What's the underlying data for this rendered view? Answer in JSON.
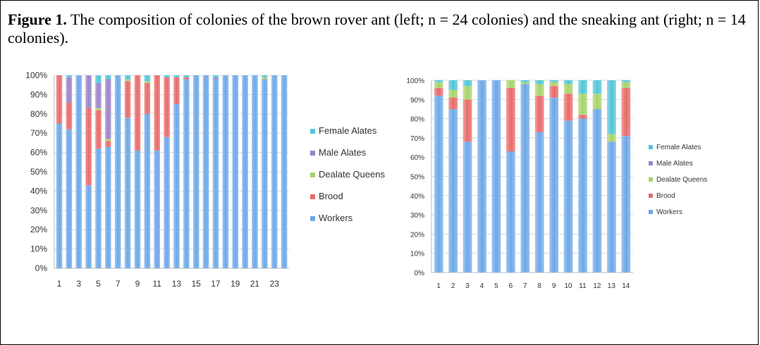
{
  "caption": {
    "label": "Figure 1.",
    "text": "The composition of colonies of the brown rover ant (left; n = 24 colonies) and the sneaking ant (right; n = 14 colonies)."
  },
  "colors": {
    "Workers": "#6ea8e8",
    "Brood": "#e86a6a",
    "Dealate Queens": "#a8d36a",
    "Male Alates": "#9b84c8",
    "Female Alates": "#52c5d8"
  },
  "chart_data": [
    {
      "type": "bar",
      "stacked": true,
      "title": "",
      "ylim": [
        0,
        100
      ],
      "yticks": [
        "0%",
        "10%",
        "20%",
        "30%",
        "40%",
        "50%",
        "60%",
        "70%",
        "80%",
        "90%",
        "100%"
      ],
      "x": [
        1,
        2,
        3,
        4,
        5,
        6,
        7,
        8,
        9,
        10,
        11,
        12,
        13,
        14,
        15,
        16,
        17,
        18,
        19,
        20,
        21,
        22,
        23,
        24
      ],
      "xticks": [
        "1",
        "3",
        "5",
        "7",
        "9",
        "11",
        "13",
        "15",
        "17",
        "19",
        "21",
        "23"
      ],
      "legend_position": "right",
      "legend": [
        "Female Alates",
        "Male Alates",
        "Dealate Queens",
        "Brood",
        "Workers"
      ],
      "series": [
        {
          "name": "Workers",
          "values": [
            75,
            72,
            100,
            43,
            62,
            63,
            100,
            78,
            61,
            80,
            61,
            68,
            85,
            98,
            100,
            100,
            98,
            100,
            100,
            100,
            100,
            98,
            100,
            100
          ]
        },
        {
          "name": "Brood",
          "values": [
            25,
            14,
            0,
            40,
            20,
            3,
            0,
            19,
            39,
            16,
            39,
            31,
            14,
            1,
            0,
            0,
            0,
            0,
            0,
            0,
            0,
            0,
            0,
            0
          ]
        },
        {
          "name": "Dealate Queens",
          "values": [
            0,
            0,
            0,
            0,
            1,
            1,
            0,
            1,
            0,
            1,
            0,
            0,
            0,
            0,
            0,
            0,
            0,
            0,
            0,
            0,
            0,
            1,
            0,
            0
          ]
        },
        {
          "name": "Male Alates",
          "values": [
            0,
            13,
            0,
            17,
            13,
            31,
            0,
            0,
            0,
            0,
            0,
            0,
            0,
            0,
            0,
            0,
            1,
            0,
            0,
            0,
            0,
            0,
            0,
            0
          ]
        },
        {
          "name": "Female Alates",
          "values": [
            0,
            1,
            0,
            0,
            4,
            2,
            0,
            2,
            0,
            3,
            0,
            1,
            1,
            1,
            0,
            0,
            1,
            0,
            0,
            0,
            0,
            1,
            0,
            0
          ]
        }
      ]
    },
    {
      "type": "bar",
      "stacked": true,
      "title": "",
      "ylim": [
        0,
        100
      ],
      "yticks": [
        "0%",
        "10%",
        "20%",
        "30%",
        "40%",
        "50%",
        "60%",
        "70%",
        "80%",
        "90%",
        "100%"
      ],
      "x": [
        1,
        2,
        3,
        4,
        5,
        6,
        7,
        8,
        9,
        10,
        11,
        12,
        13,
        14
      ],
      "xticks": [
        "1",
        "2",
        "3",
        "4",
        "5",
        "6",
        "7",
        "8",
        "9",
        "10",
        "11",
        "12",
        "13",
        "14"
      ],
      "legend_position": "right",
      "legend": [
        "Female Alates",
        "Male Alates",
        "Dealate Queens",
        "Brood",
        "Workers"
      ],
      "series": [
        {
          "name": "Workers",
          "values": [
            92,
            85,
            68,
            100,
            100,
            63,
            98,
            73,
            91,
            79,
            80,
            85,
            68,
            71
          ]
        },
        {
          "name": "Brood",
          "values": [
            4,
            6,
            22,
            0,
            0,
            33,
            0,
            19,
            6,
            14,
            2,
            0,
            0,
            25
          ]
        },
        {
          "name": "Dealate Queens",
          "values": [
            3,
            4,
            7,
            0,
            0,
            4,
            1,
            6,
            2,
            5,
            11,
            8,
            4,
            3
          ]
        },
        {
          "name": "Male Alates",
          "values": [
            0,
            0,
            0,
            0,
            0,
            0,
            0,
            0,
            0,
            0,
            0,
            0,
            0,
            0
          ]
        },
        {
          "name": "Female Alates",
          "values": [
            1,
            5,
            3,
            0,
            0,
            0,
            1,
            2,
            1,
            2,
            7,
            7,
            28,
            1
          ]
        }
      ]
    }
  ]
}
